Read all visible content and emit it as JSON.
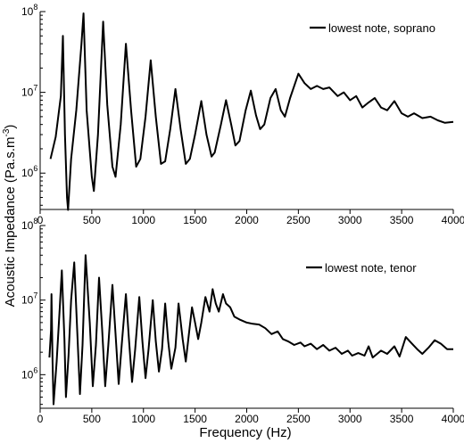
{
  "chart_data": {
    "type": "line",
    "xlabel": "Frequency (Hz)",
    "ylabel": "Acoustic Impedance (Pa.s.m⁻³)",
    "ylabel_parts": {
      "main": "Acoustic Impedance (Pa.s.m",
      "sup": "-3",
      "close": ")"
    },
    "x_ticks": [
      "0",
      "500",
      "1000",
      "1500",
      "2000",
      "2500",
      "3000",
      "3500",
      "4000"
    ],
    "y_ticks": [
      {
        "base": "10",
        "exp": "8"
      },
      {
        "base": "10",
        "exp": "7"
      },
      {
        "base": "10",
        "exp": "6"
      }
    ],
    "panels": [
      {
        "legend": "lowest note, soprano",
        "xlim": [
          0,
          4000
        ],
        "ylim_log10": [
          5.55,
          8.0
        ],
        "y_scale": "log",
        "points": [
          [
            100,
            1500000
          ],
          [
            150,
            2800000
          ],
          [
            200,
            9000000
          ],
          [
            220,
            50000000
          ],
          [
            240,
            3000000
          ],
          [
            260,
            500000
          ],
          [
            270,
            350000
          ],
          [
            300,
            1500000
          ],
          [
            350,
            6000000
          ],
          [
            400,
            40000000
          ],
          [
            420,
            95000000
          ],
          [
            450,
            6000000
          ],
          [
            500,
            900000
          ],
          [
            520,
            600000
          ],
          [
            560,
            3000000
          ],
          [
            610,
            75000000
          ],
          [
            650,
            7000000
          ],
          [
            700,
            1200000
          ],
          [
            730,
            900000
          ],
          [
            780,
            4000000
          ],
          [
            830,
            40000000
          ],
          [
            880,
            6000000
          ],
          [
            930,
            1200000
          ],
          [
            970,
            1500000
          ],
          [
            1020,
            5000000
          ],
          [
            1070,
            25000000
          ],
          [
            1120,
            5000000
          ],
          [
            1170,
            1300000
          ],
          [
            1210,
            1400000
          ],
          [
            1260,
            3500000
          ],
          [
            1310,
            11000000
          ],
          [
            1360,
            3500000
          ],
          [
            1410,
            1300000
          ],
          [
            1450,
            1500000
          ],
          [
            1500,
            3000000
          ],
          [
            1560,
            7800000
          ],
          [
            1610,
            3000000
          ],
          [
            1660,
            1600000
          ],
          [
            1690,
            1800000
          ],
          [
            1750,
            4000000
          ],
          [
            1800,
            8000000
          ],
          [
            1850,
            4000000
          ],
          [
            1890,
            2200000
          ],
          [
            1930,
            2500000
          ],
          [
            1990,
            6000000
          ],
          [
            2040,
            10500000
          ],
          [
            2090,
            5200000
          ],
          [
            2130,
            3500000
          ],
          [
            2170,
            4000000
          ],
          [
            2230,
            8500000
          ],
          [
            2280,
            11000000
          ],
          [
            2330,
            6000000
          ],
          [
            2370,
            5000000
          ],
          [
            2420,
            8500000
          ],
          [
            2500,
            17000000
          ],
          [
            2560,
            13000000
          ],
          [
            2620,
            11000000
          ],
          [
            2680,
            12000000
          ],
          [
            2740,
            11000000
          ],
          [
            2800,
            11500000
          ],
          [
            2880,
            9000000
          ],
          [
            2940,
            10000000
          ],
          [
            3000,
            8000000
          ],
          [
            3060,
            9000000
          ],
          [
            3120,
            6500000
          ],
          [
            3180,
            7500000
          ],
          [
            3240,
            8500000
          ],
          [
            3300,
            6500000
          ],
          [
            3360,
            6000000
          ],
          [
            3430,
            7800000
          ],
          [
            3500,
            5500000
          ],
          [
            3560,
            5000000
          ],
          [
            3620,
            5500000
          ],
          [
            3700,
            4800000
          ],
          [
            3780,
            5000000
          ],
          [
            3850,
            4500000
          ],
          [
            3920,
            4200000
          ],
          [
            4000,
            4300000
          ]
        ]
      },
      {
        "legend": "lowest note, tenor",
        "xlim": [
          0,
          4000
        ],
        "ylim_log10": [
          5.55,
          8.0
        ],
        "y_scale": "log",
        "points": [
          [
            90,
            1700000
          ],
          [
            105,
            4000000
          ],
          [
            110,
            12000000
          ],
          [
            120,
            1500000
          ],
          [
            130,
            400000
          ],
          [
            160,
            1500000
          ],
          [
            190,
            8000000
          ],
          [
            210,
            25000000
          ],
          [
            235,
            3000000
          ],
          [
            250,
            500000
          ],
          [
            275,
            1800000
          ],
          [
            300,
            10000000
          ],
          [
            330,
            32000000
          ],
          [
            360,
            3500000
          ],
          [
            385,
            550000
          ],
          [
            410,
            2500000
          ],
          [
            440,
            40000000
          ],
          [
            480,
            5000000
          ],
          [
            510,
            700000
          ],
          [
            540,
            2500000
          ],
          [
            570,
            20000000
          ],
          [
            600,
            4000000
          ],
          [
            630,
            700000
          ],
          [
            660,
            2500000
          ],
          [
            700,
            16000000
          ],
          [
            730,
            3500000
          ],
          [
            760,
            750000
          ],
          [
            790,
            2500000
          ],
          [
            830,
            12000000
          ],
          [
            860,
            3000000
          ],
          [
            890,
            800000
          ],
          [
            920,
            2200000
          ],
          [
            960,
            11000000
          ],
          [
            990,
            2800000
          ],
          [
            1020,
            900000
          ],
          [
            1050,
            2200000
          ],
          [
            1090,
            10000000
          ],
          [
            1120,
            2800000
          ],
          [
            1150,
            1100000
          ],
          [
            1180,
            2200000
          ],
          [
            1210,
            9000000
          ],
          [
            1240,
            2800000
          ],
          [
            1270,
            1200000
          ],
          [
            1310,
            2300000
          ],
          [
            1340,
            9000000
          ],
          [
            1380,
            3000000
          ],
          [
            1410,
            1500000
          ],
          [
            1440,
            3500000
          ],
          [
            1470,
            8000000
          ],
          [
            1500,
            5000000
          ],
          [
            1530,
            3000000
          ],
          [
            1560,
            5000000
          ],
          [
            1600,
            11000000
          ],
          [
            1640,
            7000000
          ],
          [
            1670,
            14000000
          ],
          [
            1700,
            9000000
          ],
          [
            1730,
            7000000
          ],
          [
            1770,
            12000000
          ],
          [
            1800,
            9000000
          ],
          [
            1840,
            8000000
          ],
          [
            1880,
            6000000
          ],
          [
            1930,
            5500000
          ],
          [
            2000,
            5000000
          ],
          [
            2060,
            4800000
          ],
          [
            2120,
            4700000
          ],
          [
            2180,
            4200000
          ],
          [
            2240,
            3500000
          ],
          [
            2300,
            3800000
          ],
          [
            2350,
            3000000
          ],
          [
            2400,
            2800000
          ],
          [
            2460,
            2500000
          ],
          [
            2520,
            2700000
          ],
          [
            2560,
            2400000
          ],
          [
            2620,
            2600000
          ],
          [
            2680,
            2200000
          ],
          [
            2740,
            2500000
          ],
          [
            2800,
            2100000
          ],
          [
            2860,
            2300000
          ],
          [
            2920,
            1900000
          ],
          [
            2980,
            2100000
          ],
          [
            3020,
            1800000
          ],
          [
            3080,
            1950000
          ],
          [
            3140,
            1800000
          ],
          [
            3180,
            2400000
          ],
          [
            3220,
            1700000
          ],
          [
            3300,
            2100000
          ],
          [
            3360,
            1900000
          ],
          [
            3430,
            2400000
          ],
          [
            3480,
            1750000
          ],
          [
            3540,
            3200000
          ],
          [
            3600,
            2600000
          ],
          [
            3650,
            2200000
          ],
          [
            3700,
            1900000
          ],
          [
            3760,
            2300000
          ],
          [
            3820,
            2900000
          ],
          [
            3880,
            2600000
          ],
          [
            3940,
            2200000
          ],
          [
            4000,
            2200000
          ]
        ]
      }
    ]
  }
}
